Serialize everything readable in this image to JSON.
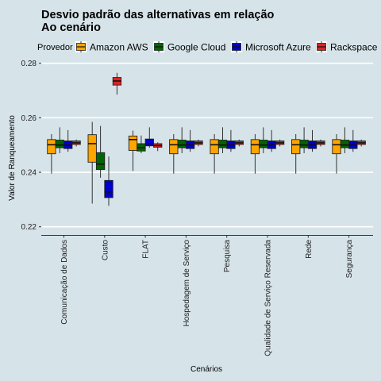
{
  "chart_data": {
    "type": "boxplot",
    "title_line1": "Desvio padrão das alternativas em relação",
    "title_line2": "Ao cenário",
    "xlabel": "Cenários",
    "ylabel": "Valor de Ranqueamento",
    "legend_title": "Provedor",
    "legend_position": "top",
    "ylim": [
      0.217,
      0.2805
    ],
    "yticks": [
      0.22,
      0.24,
      0.26,
      0.28
    ],
    "ytick_labels": [
      "0.22",
      "0.24",
      "0.26",
      "0.28"
    ],
    "grid": true,
    "categories": [
      "Comunicação de Dados",
      "Custo",
      "FLAT",
      "Hospedagem de Serviço",
      "Pesquisa",
      "Qualidade de Serviço Reservada",
      "Rede",
      "Segurança"
    ],
    "series": [
      {
        "name": "Amazon AWS",
        "color": "#FFA500",
        "boxes": [
          {
            "whislo": 0.2395,
            "q1": 0.2468,
            "med": 0.2501,
            "q3": 0.252,
            "whishi": 0.254
          },
          {
            "whislo": 0.2285,
            "q1": 0.2437,
            "med": 0.2505,
            "q3": 0.2538,
            "whishi": 0.2585
          },
          {
            "whislo": 0.2405,
            "q1": 0.248,
            "med": 0.252,
            "q3": 0.2533,
            "whishi": 0.2553
          },
          {
            "whislo": 0.2395,
            "q1": 0.2468,
            "med": 0.2501,
            "q3": 0.252,
            "whishi": 0.254
          },
          {
            "whislo": 0.2395,
            "q1": 0.2468,
            "med": 0.2501,
            "q3": 0.252,
            "whishi": 0.254
          },
          {
            "whislo": 0.2395,
            "q1": 0.2468,
            "med": 0.2501,
            "q3": 0.252,
            "whishi": 0.254
          },
          {
            "whislo": 0.2395,
            "q1": 0.2468,
            "med": 0.2501,
            "q3": 0.252,
            "whishi": 0.254
          },
          {
            "whislo": 0.2395,
            "q1": 0.2468,
            "med": 0.2501,
            "q3": 0.252,
            "whishi": 0.254
          }
        ]
      },
      {
        "name": "Google Cloud",
        "color": "#006400",
        "boxes": [
          {
            "whislo": 0.247,
            "q1": 0.249,
            "med": 0.25,
            "q3": 0.2518,
            "whishi": 0.2565
          },
          {
            "whislo": 0.238,
            "q1": 0.241,
            "med": 0.243,
            "q3": 0.2472,
            "whishi": 0.257
          },
          {
            "whislo": 0.247,
            "q1": 0.2478,
            "med": 0.249,
            "q3": 0.2505,
            "whishi": 0.2535
          },
          {
            "whislo": 0.247,
            "q1": 0.249,
            "med": 0.25,
            "q3": 0.2518,
            "whishi": 0.2565
          },
          {
            "whislo": 0.247,
            "q1": 0.249,
            "med": 0.25,
            "q3": 0.2518,
            "whishi": 0.2565
          },
          {
            "whislo": 0.247,
            "q1": 0.249,
            "med": 0.25,
            "q3": 0.2518,
            "whishi": 0.2565
          },
          {
            "whislo": 0.247,
            "q1": 0.249,
            "med": 0.25,
            "q3": 0.2518,
            "whishi": 0.2565
          },
          {
            "whislo": 0.247,
            "q1": 0.249,
            "med": 0.25,
            "q3": 0.2518,
            "whishi": 0.2565
          }
        ]
      },
      {
        "name": "Microsoft Azure",
        "color": "#0000CD",
        "boxes": [
          {
            "whislo": 0.2475,
            "q1": 0.2487,
            "med": 0.25,
            "q3": 0.2515,
            "whishi": 0.2555
          },
          {
            "whislo": 0.2277,
            "q1": 0.2307,
            "med": 0.2328,
            "q3": 0.237,
            "whishi": 0.2458
          },
          {
            "whislo": 0.249,
            "q1": 0.2497,
            "med": 0.2505,
            "q3": 0.2522,
            "whishi": 0.2565
          },
          {
            "whislo": 0.2475,
            "q1": 0.2487,
            "med": 0.25,
            "q3": 0.2515,
            "whishi": 0.2555
          },
          {
            "whislo": 0.2475,
            "q1": 0.2487,
            "med": 0.25,
            "q3": 0.2515,
            "whishi": 0.2555
          },
          {
            "whislo": 0.2475,
            "q1": 0.2487,
            "med": 0.25,
            "q3": 0.2515,
            "whishi": 0.2555
          },
          {
            "whislo": 0.2475,
            "q1": 0.2487,
            "med": 0.25,
            "q3": 0.2515,
            "whishi": 0.2555
          },
          {
            "whislo": 0.2475,
            "q1": 0.2487,
            "med": 0.25,
            "q3": 0.2515,
            "whishi": 0.2555
          }
        ]
      },
      {
        "name": "Rackspace",
        "color": "#DD2222",
        "boxes": [
          {
            "whislo": 0.2495,
            "q1": 0.2502,
            "med": 0.2508,
            "q3": 0.2515,
            "whishi": 0.252
          },
          {
            "whislo": 0.2685,
            "q1": 0.272,
            "med": 0.2735,
            "q3": 0.2748,
            "whishi": 0.2765
          },
          {
            "whislo": 0.2478,
            "q1": 0.2492,
            "med": 0.2498,
            "q3": 0.2505,
            "whishi": 0.251
          },
          {
            "whislo": 0.2495,
            "q1": 0.2502,
            "med": 0.2508,
            "q3": 0.2515,
            "whishi": 0.252
          },
          {
            "whislo": 0.2495,
            "q1": 0.2502,
            "med": 0.2508,
            "q3": 0.2515,
            "whishi": 0.252
          },
          {
            "whislo": 0.2495,
            "q1": 0.2502,
            "med": 0.2508,
            "q3": 0.2515,
            "whishi": 0.252
          },
          {
            "whislo": 0.2495,
            "q1": 0.2502,
            "med": 0.2508,
            "q3": 0.2515,
            "whishi": 0.252
          },
          {
            "whislo": 0.2495,
            "q1": 0.2502,
            "med": 0.2508,
            "q3": 0.2515,
            "whishi": 0.252
          }
        ]
      }
    ]
  }
}
